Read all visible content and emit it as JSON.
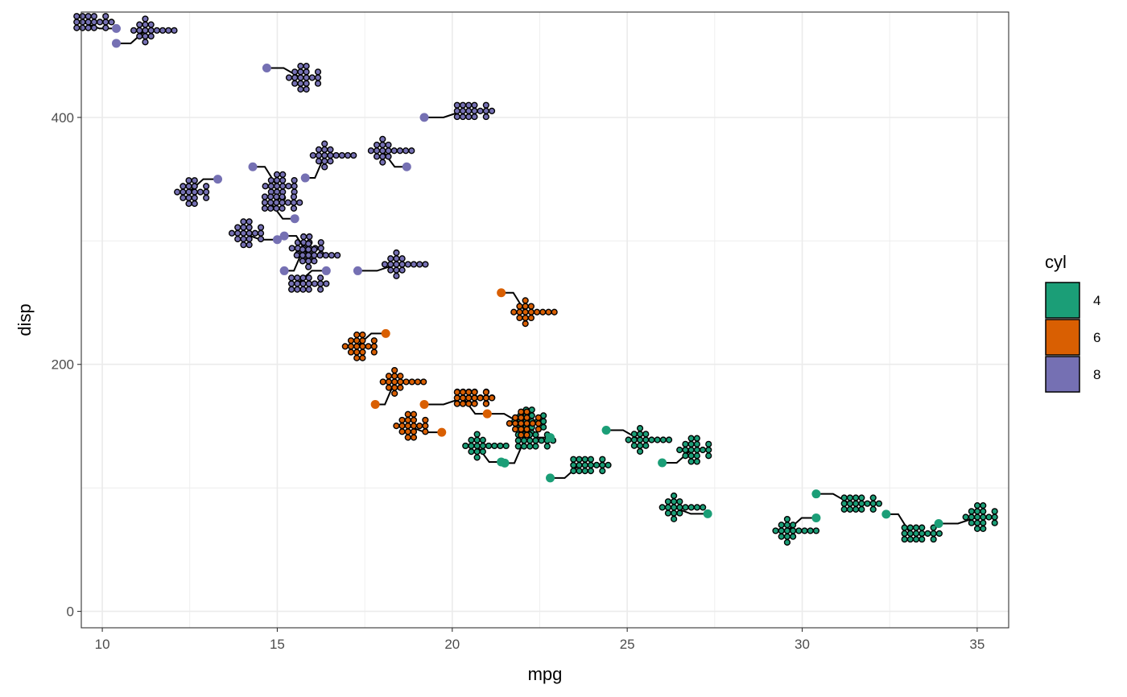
{
  "chart_data": {
    "type": "scatter",
    "title": "",
    "xlabel": "mpg",
    "ylabel": "disp",
    "xlim": [
      9.4,
      35.9
    ],
    "ylim": [
      -13.3,
      485.3
    ],
    "x_ticks": [
      10,
      15,
      20,
      25,
      30,
      35
    ],
    "x_tick_labels": [
      "10",
      "15",
      "20",
      "25",
      "30",
      "35"
    ],
    "y_ticks": [
      0,
      200,
      400
    ],
    "y_tick_labels": [
      "0",
      "200",
      "400"
    ],
    "grid": true,
    "legend": {
      "title": "cyl",
      "position": "right",
      "entries": [
        {
          "label": "4",
          "color": "#1b9e77"
        },
        {
          "label": "6",
          "color": "#d95f02"
        },
        {
          "label": "8",
          "color": "#7570b3"
        }
      ]
    },
    "series": [
      {
        "name": "4",
        "color": "#1b9e77",
        "points": [
          [
            22.8,
            108
          ],
          [
            24.4,
            146.7
          ],
          [
            22.8,
            140.8
          ],
          [
            32.4,
            78.7
          ],
          [
            30.4,
            75.7
          ],
          [
            33.9,
            71.1
          ],
          [
            21.5,
            120.1
          ],
          [
            27.3,
            79
          ],
          [
            26.0,
            120.3
          ],
          [
            30.4,
            95.1
          ],
          [
            21.4,
            121
          ]
        ]
      },
      {
        "name": "6",
        "color": "#d95f02",
        "points": [
          [
            21.0,
            160
          ],
          [
            21.0,
            160
          ],
          [
            21.4,
            258
          ],
          [
            18.1,
            225
          ],
          [
            19.2,
            167.6
          ],
          [
            17.8,
            167.6
          ],
          [
            19.7,
            145
          ]
        ]
      },
      {
        "name": "8",
        "color": "#7570b3",
        "points": [
          [
            18.7,
            360
          ],
          [
            14.3,
            360
          ],
          [
            16.4,
            275.8
          ],
          [
            17.3,
            275.8
          ],
          [
            15.2,
            275.8
          ],
          [
            10.4,
            472
          ],
          [
            10.4,
            460
          ],
          [
            14.7,
            440
          ],
          [
            15.5,
            318
          ],
          [
            15.2,
            304
          ],
          [
            13.3,
            350
          ],
          [
            19.2,
            400
          ],
          [
            15.8,
            351
          ],
          [
            15.0,
            301
          ]
        ]
      }
    ]
  }
}
